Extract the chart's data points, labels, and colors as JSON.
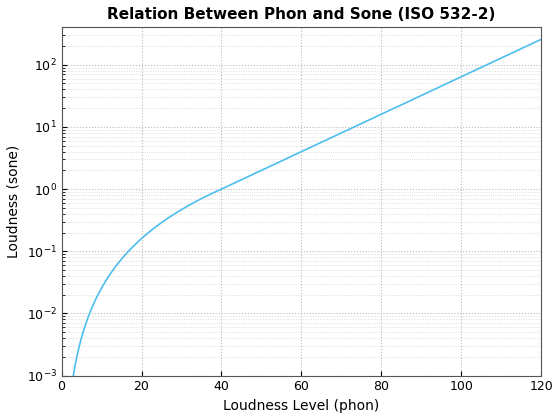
{
  "title": "Relation Between Phon and Sone (ISO 532-2)",
  "xlabel": "Loudness Level (phon)",
  "ylabel": "Loudness (sone)",
  "line_color": "#4DBEEE",
  "line_width": 1.2,
  "xlim": [
    0,
    120
  ],
  "ylim": [
    0.001,
    400
  ],
  "xticks": [
    0,
    20,
    40,
    60,
    80,
    100,
    120
  ],
  "yticks_major": [
    -3,
    -2,
    -1,
    0,
    1,
    2
  ],
  "background_color": "#ffffff",
  "grid_color": "#aaaaaa",
  "title_fontsize": 11,
  "label_fontsize": 10,
  "tick_fontsize": 9
}
